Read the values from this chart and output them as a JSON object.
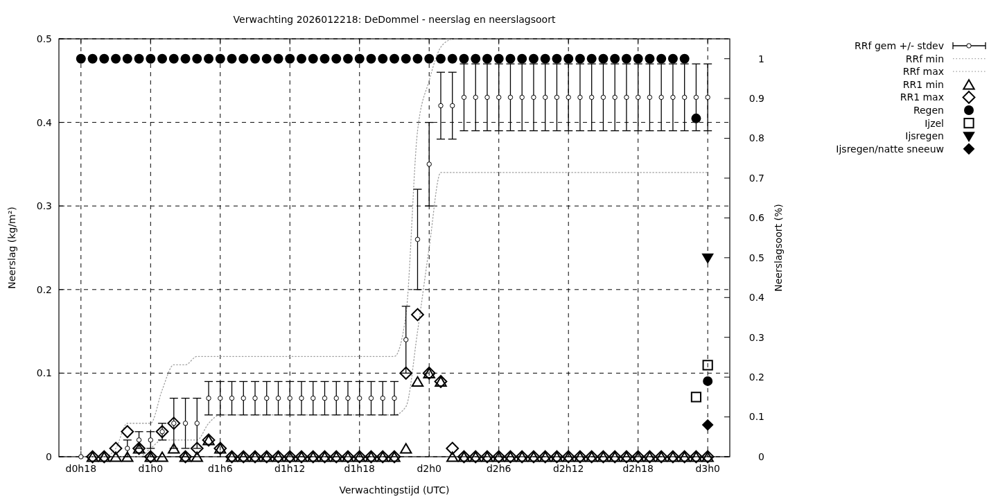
{
  "chart_data": {
    "type": "scatter",
    "title": "Verwachting 2026012218: DeDommel - neerslag en neerslagsoort",
    "xlabel": "Verwachtingstijd (UTC)",
    "ylabel": "Neerslag (kg/m²)",
    "y2label": "Neerslagsoort (%)",
    "categories": [
      "d0h18",
      null,
      null,
      null,
      null,
      null,
      "d1h0",
      null,
      null,
      null,
      null,
      null,
      "d1h6",
      null,
      null,
      null,
      null,
      null,
      "d1h12",
      null,
      null,
      null,
      null,
      null,
      "d1h18",
      null,
      null,
      null,
      null,
      null,
      "d2h0",
      null,
      null,
      null,
      null,
      null,
      "d2h6",
      null,
      null,
      null,
      null,
      null,
      "d2h12",
      null,
      null,
      null,
      null,
      null,
      "d2h18",
      null,
      null,
      null,
      null,
      null,
      "d3h0"
    ],
    "ylim": [
      0,
      0.5
    ],
    "yticks": [
      0,
      0.1,
      0.2,
      0.3,
      0.4,
      0.5
    ],
    "y2lim": [
      0,
      1.05
    ],
    "y2ticks": [
      0,
      0.1,
      0.2,
      0.3,
      0.4,
      0.5,
      0.6,
      0.7,
      0.8,
      0.9,
      1
    ],
    "grid": true,
    "legend": "right",
    "series": [
      {
        "name": "RRf gem +/- stdev",
        "marker": "circle",
        "color": "#000000",
        "values": [
          0,
          null,
          null,
          null,
          0.01,
          0.02,
          0.02,
          0.03,
          0.04,
          0.04,
          0.04,
          0.07,
          0.07,
          0.07,
          0.07,
          0.07,
          0.07,
          0.07,
          0.07,
          0.07,
          0.07,
          0.07,
          0.07,
          0.07,
          0.07,
          0.07,
          0.07,
          0.07,
          0.14,
          0.26,
          0.35,
          0.42,
          0.42,
          0.43,
          0.43,
          0.43,
          0.43,
          0.43,
          0.43,
          0.43,
          0.43,
          0.43,
          0.43,
          0.43,
          0.43,
          0.43,
          0.43,
          0.43,
          0.43,
          0.43,
          0.43,
          0.43,
          0.43,
          0.43,
          0.43
        ],
        "errors": [
          null,
          null,
          null,
          null,
          [
            0,
            0.02
          ],
          [
            0.01,
            0.03
          ],
          [
            0.01,
            0.03
          ],
          [
            0.02,
            0.04
          ],
          [
            0.01,
            0.07
          ],
          [
            0.01,
            0.07
          ],
          [
            0.01,
            0.07
          ],
          [
            0.05,
            0.09
          ],
          [
            0.05,
            0.09
          ],
          [
            0.05,
            0.09
          ],
          [
            0.05,
            0.09
          ],
          [
            0.05,
            0.09
          ],
          [
            0.05,
            0.09
          ],
          [
            0.05,
            0.09
          ],
          [
            0.05,
            0.09
          ],
          [
            0.05,
            0.09
          ],
          [
            0.05,
            0.09
          ],
          [
            0.05,
            0.09
          ],
          [
            0.05,
            0.09
          ],
          [
            0.05,
            0.09
          ],
          [
            0.05,
            0.09
          ],
          [
            0.05,
            0.09
          ],
          [
            0.05,
            0.09
          ],
          [
            0.05,
            0.09
          ],
          [
            0.1,
            0.18
          ],
          [
            0.2,
            0.32
          ],
          [
            0.3,
            0.4
          ],
          [
            0.38,
            0.46
          ],
          [
            0.38,
            0.46
          ],
          [
            0.39,
            0.47
          ],
          [
            0.39,
            0.47
          ],
          [
            0.39,
            0.47
          ],
          [
            0.39,
            0.47
          ],
          [
            0.39,
            0.47
          ],
          [
            0.39,
            0.47
          ],
          [
            0.39,
            0.47
          ],
          [
            0.39,
            0.47
          ],
          [
            0.39,
            0.47
          ],
          [
            0.39,
            0.47
          ],
          [
            0.39,
            0.47
          ],
          [
            0.39,
            0.47
          ],
          [
            0.39,
            0.47
          ],
          [
            0.39,
            0.47
          ],
          [
            0.39,
            0.47
          ],
          [
            0.39,
            0.47
          ],
          [
            0.39,
            0.47
          ],
          [
            0.39,
            0.47
          ],
          [
            0.39,
            0.47
          ],
          [
            0.39,
            0.47
          ],
          [
            0.39,
            0.47
          ],
          [
            0.39,
            0.47
          ]
        ]
      },
      {
        "name": "RRf min",
        "type": "line",
        "line_style": "dotted",
        "marker": "none",
        "color": "#a0a0a0",
        "values": [
          0,
          0,
          0,
          0,
          0,
          0,
          0.01,
          0.02,
          0.02,
          0.02,
          0.02,
          0.04,
          0.05,
          0.05,
          0.05,
          0.05,
          0.05,
          0.05,
          0.05,
          0.05,
          0.05,
          0.05,
          0.05,
          0.05,
          0.05,
          0.05,
          0.05,
          0.05,
          0.06,
          0.15,
          0.25,
          0.34,
          0.34,
          0.34,
          0.34,
          0.34,
          0.34,
          0.34,
          0.34,
          0.34,
          0.34,
          0.34,
          0.34,
          0.34,
          0.34,
          0.34,
          0.34,
          0.34,
          0.34,
          0.34,
          0.34,
          0.34,
          0.34,
          0.34,
          0.34
        ]
      },
      {
        "name": "RRf max",
        "type": "line",
        "line_style": "dotted",
        "marker": "none",
        "color": "#a0a0a0",
        "values": [
          0,
          0,
          0,
          0.01,
          0.04,
          0.04,
          0.04,
          0.08,
          0.11,
          0.11,
          0.12,
          0.12,
          0.12,
          0.12,
          0.12,
          0.12,
          0.12,
          0.12,
          0.12,
          0.12,
          0.12,
          0.12,
          0.12,
          0.12,
          0.12,
          0.12,
          0.12,
          0.12,
          0.17,
          0.39,
          0.45,
          0.49,
          0.5,
          null,
          null,
          null,
          null,
          null,
          null,
          null,
          null,
          null,
          null,
          null,
          null,
          null,
          null,
          null,
          null,
          null,
          null,
          null,
          null,
          null,
          null
        ]
      },
      {
        "name": "RR1 min",
        "marker": "triangle",
        "color": "#000000",
        "values": [
          null,
          0,
          0,
          0,
          0,
          0.01,
          0,
          0,
          0.01,
          0,
          0,
          0.02,
          0.01,
          0,
          0,
          0,
          0,
          0,
          0,
          0,
          0,
          0,
          0,
          0,
          0,
          0,
          0,
          0,
          0.01,
          0.09,
          0.1,
          0.09,
          0,
          0,
          0,
          0,
          0,
          0,
          0,
          0,
          0,
          0,
          0,
          0,
          0,
          0,
          0,
          0,
          0,
          0,
          0,
          0,
          0,
          0,
          0
        ]
      },
      {
        "name": "RR1 max",
        "marker": "diamond",
        "color": "#000000",
        "values": [
          null,
          0,
          0,
          0.01,
          0.03,
          0.01,
          0,
          0.03,
          0.04,
          0,
          0.01,
          0.02,
          0.01,
          0,
          0,
          0,
          0,
          0,
          0,
          0,
          0,
          0,
          0,
          0,
          0,
          0,
          0,
          0,
          0.1,
          0.17,
          0.1,
          0.09,
          0.01,
          0,
          0,
          0,
          0,
          0,
          0,
          0,
          0,
          0,
          0,
          0,
          0,
          0,
          0,
          0,
          0,
          0,
          0,
          0,
          0,
          0,
          0
        ]
      },
      {
        "name": "Regen",
        "axis": "y2",
        "marker": "circle",
        "color": "#000000",
        "values": [
          1,
          1,
          1,
          1,
          1,
          1,
          1,
          1,
          1,
          1,
          1,
          1,
          1,
          1,
          1,
          1,
          1,
          1,
          1,
          1,
          1,
          1,
          1,
          1,
          1,
          1,
          1,
          1,
          1,
          1,
          1,
          1,
          1,
          1,
          1,
          1,
          1,
          1,
          1,
          1,
          1,
          1,
          1,
          1,
          1,
          1,
          1,
          1,
          1,
          1,
          1,
          1,
          1,
          0.85,
          0.19
        ]
      },
      {
        "name": "Ijzel",
        "axis": "y2",
        "marker": "square",
        "color": "#000000",
        "values": [
          null,
          null,
          null,
          null,
          null,
          null,
          null,
          null,
          null,
          null,
          null,
          null,
          null,
          null,
          null,
          null,
          null,
          null,
          null,
          null,
          null,
          null,
          null,
          null,
          null,
          null,
          null,
          null,
          null,
          null,
          null,
          null,
          null,
          null,
          null,
          null,
          null,
          null,
          null,
          null,
          null,
          null,
          null,
          null,
          null,
          null,
          null,
          null,
          null,
          null,
          null,
          null,
          null,
          0.15,
          0.23
        ]
      },
      {
        "name": "Ijsregen",
        "axis": "y2",
        "marker": "triangle",
        "color": "#000000",
        "values": [
          null,
          null,
          null,
          null,
          null,
          null,
          null,
          null,
          null,
          null,
          null,
          null,
          null,
          null,
          null,
          null,
          null,
          null,
          null,
          null,
          null,
          null,
          null,
          null,
          null,
          null,
          null,
          null,
          null,
          null,
          null,
          null,
          null,
          null,
          null,
          null,
          null,
          null,
          null,
          null,
          null,
          null,
          null,
          null,
          null,
          null,
          null,
          null,
          null,
          null,
          null,
          null,
          null,
          null,
          0.5
        ]
      },
      {
        "name": "Ijsregen/natte sneeuw",
        "axis": "y2",
        "marker": "diamond",
        "color": "#000000",
        "values": [
          null,
          null,
          null,
          null,
          null,
          null,
          null,
          null,
          null,
          null,
          null,
          null,
          null,
          null,
          null,
          null,
          null,
          null,
          null,
          null,
          null,
          null,
          null,
          null,
          null,
          null,
          null,
          null,
          null,
          null,
          null,
          null,
          null,
          null,
          null,
          null,
          null,
          null,
          null,
          null,
          null,
          null,
          null,
          null,
          null,
          null,
          null,
          null,
          null,
          null,
          null,
          null,
          null,
          null,
          0.08
        ]
      }
    ]
  }
}
